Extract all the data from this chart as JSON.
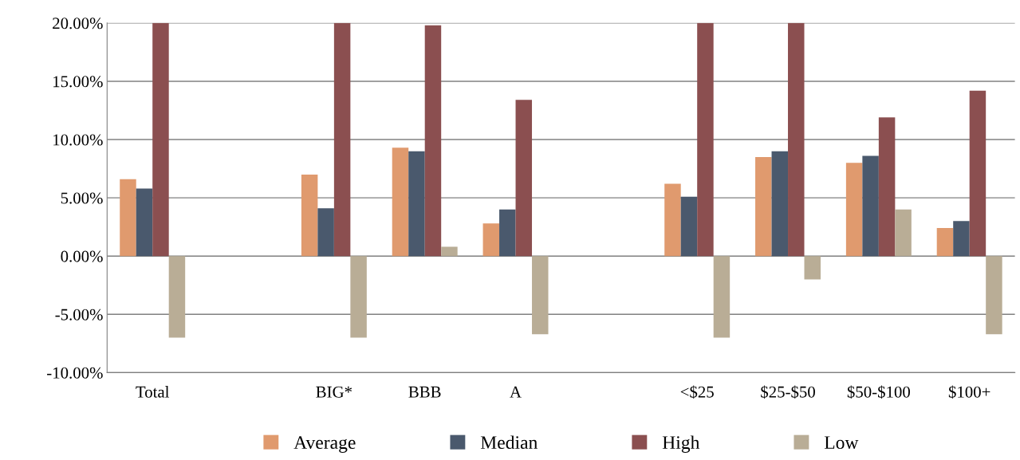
{
  "chart_data": {
    "type": "bar",
    "categories": [
      "Total",
      null,
      "BIG*",
      "BBB",
      "A",
      null,
      "<$25",
      "$25-$50",
      "$50-$100",
      "$100+"
    ],
    "series": [
      {
        "name": "Average",
        "color": "#e09a6e",
        "values": [
          6.6,
          null,
          7.0,
          9.3,
          2.8,
          null,
          6.2,
          8.5,
          8.0,
          2.4
        ]
      },
      {
        "name": "Median",
        "color": "#4a596d",
        "values": [
          5.8,
          null,
          4.1,
          9.0,
          4.0,
          null,
          5.1,
          9.0,
          8.6,
          3.0
        ]
      },
      {
        "name": "High",
        "color": "#8b4f50",
        "values": [
          20,
          null,
          20,
          19.8,
          13.4,
          null,
          20,
          20,
          11.9,
          14.2
        ]
      },
      {
        "name": "Low",
        "color": "#b9ad96",
        "values": [
          -7.0,
          null,
          -7.0,
          0.8,
          -6.7,
          null,
          -7.0,
          -2.0,
          4.0,
          -6.7
        ]
      }
    ],
    "ylim": [
      -10,
      20
    ],
    "yticks": [
      {
        "value": -10,
        "label": "-10.00%"
      },
      {
        "value": -5,
        "label": "-5.00%"
      },
      {
        "value": 0,
        "label": "0.00%"
      },
      {
        "value": 5,
        "label": "5.00%"
      },
      {
        "value": 10,
        "label": "10.00%"
      },
      {
        "value": 15,
        "label": "15.00%"
      },
      {
        "value": 20,
        "label": "20.00%"
      }
    ],
    "grid": "y",
    "legend": "bottom"
  }
}
